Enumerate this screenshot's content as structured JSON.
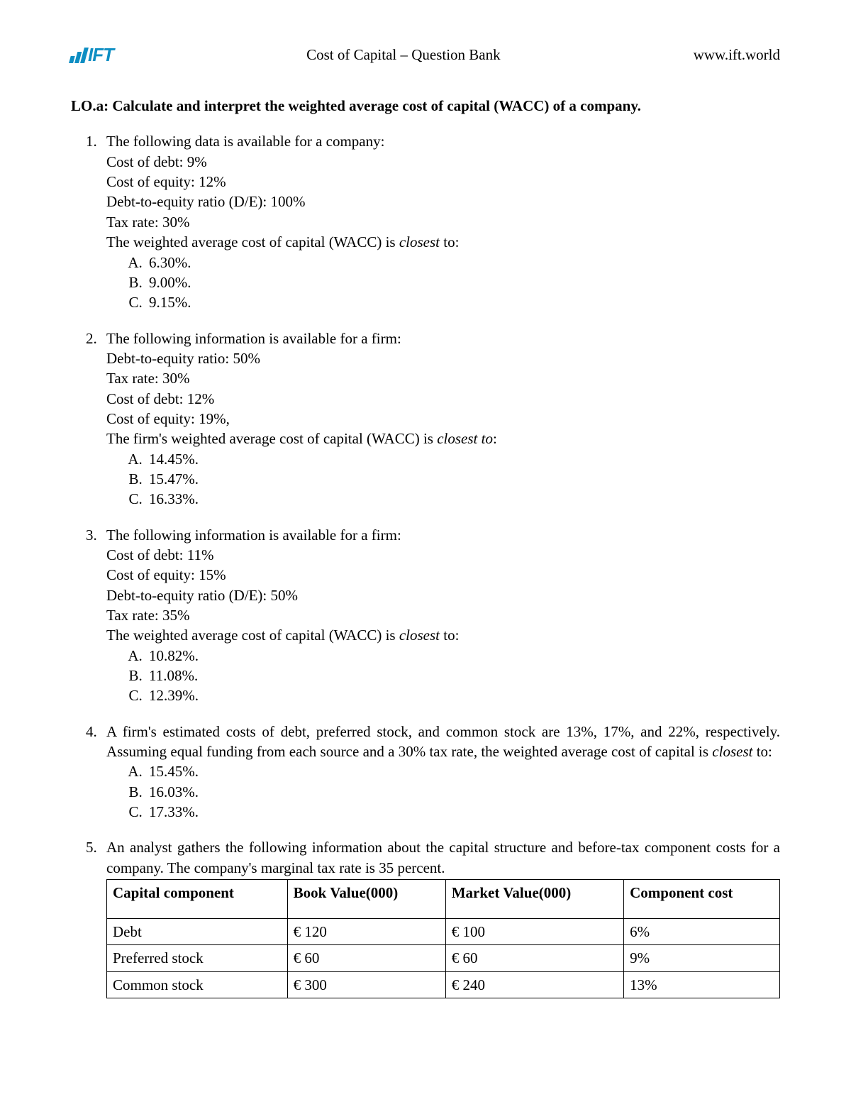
{
  "header": {
    "logo_text": "IFT",
    "title": "Cost of Capital – Question Bank",
    "url": "www.ift.world"
  },
  "lo_heading": "LO.a: Calculate and interpret the weighted average cost of capital (WACC) of a company.",
  "q1": {
    "intro": "The following data is available for a company:",
    "d1": "Cost of debt: 9%",
    "d2": "Cost of equity: 12%",
    "d3": "Debt-to-equity ratio (D/E): 100%",
    "d4": "Tax rate: 30%",
    "prompt_a": "The weighted average cost of capital (WACC) is ",
    "prompt_i": "closest",
    "prompt_b": " to:",
    "opt_a": "6.30%.",
    "opt_b": "9.00%.",
    "opt_c": "9.15%."
  },
  "q2": {
    "intro": "The following information is available for a firm:",
    "d1": "Debt-to-equity ratio: 50%",
    "d2": "Tax rate: 30%",
    "d3": "Cost of debt: 12%",
    "d4": "Cost of equity: 19%,",
    "prompt_a": "The firm's weighted average cost of capital (WACC) is ",
    "prompt_i": "closest to",
    "prompt_b": ":",
    "opt_a": "14.45%.",
    "opt_b": "15.47%.",
    "opt_c": "16.33%."
  },
  "q3": {
    "intro": "The following information is available for a firm:",
    "d1": "Cost of debt: 11%",
    "d2": "Cost of equity: 15%",
    "d3": "Debt-to-equity ratio (D/E): 50%",
    "d4": "Tax rate: 35%",
    "prompt_a": "The weighted average cost of capital (WACC) is ",
    "prompt_i": "closest",
    "prompt_b": " to:",
    "opt_a": "10.82%.",
    "opt_b": "11.08%.",
    "opt_c": "12.39%."
  },
  "q4": {
    "text_a": "A firm's estimated costs of debt, preferred stock, and common stock are 13%, 17%, and 22%, respectively. Assuming equal funding from each source and a 30% tax rate, the weighted average cost of capital is ",
    "text_i": "closest",
    "text_b": " to:",
    "opt_a": "15.45%.",
    "opt_b": "16.03%.",
    "opt_c": "17.33%."
  },
  "q5": {
    "text": "An analyst gathers the following information about the capital structure and before-tax component costs for a company.  The company's marginal tax rate is 35 percent.",
    "table": {
      "headers": {
        "c1": "Capital component",
        "c2": "Book Value(000)",
        "c3": "Market Value(000)",
        "c4": "Component cost"
      },
      "rows": {
        "r1": {
          "c1": "Debt",
          "c2": "€ 120",
          "c3": "€ 100",
          "c4": "6%"
        },
        "r2": {
          "c1": "Preferred stock",
          "c2": "€ 60",
          "c3": "€ 60",
          "c4": "9%"
        },
        "r3": {
          "c1": "Common stock",
          "c2": "€ 300",
          "c3": "€ 240",
          "c4": "13%"
        }
      }
    }
  }
}
